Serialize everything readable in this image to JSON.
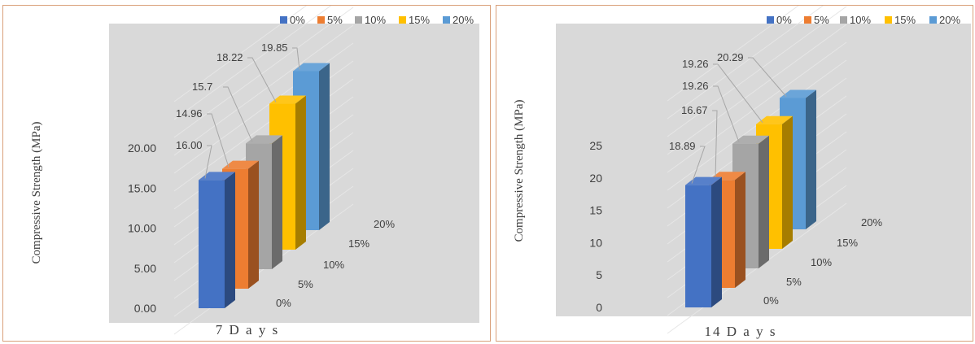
{
  "colors": {
    "plot_bg": "#d9d9d9",
    "series": [
      "#4472c4",
      "#ed7d31",
      "#a5a5a5",
      "#ffc000",
      "#5b9bd5"
    ]
  },
  "chart_data": [
    {
      "type": "bar",
      "subtype": "3d-column",
      "title": "",
      "xlabel": "7 D a y s",
      "ylabel": "Compressive Strength (MPa)",
      "ylim": [
        0,
        20
      ],
      "yticks": [
        "0.00",
        "5.00",
        "10.00",
        "15.00",
        "20.00"
      ],
      "legend_position": "top-right",
      "series": [
        {
          "name": "0%",
          "values": [
            16.0
          ],
          "label": "16.00"
        },
        {
          "name": "5%",
          "values": [
            14.96
          ],
          "label": "14.96"
        },
        {
          "name": "10%",
          "values": [
            15.7
          ],
          "label": "15.7"
        },
        {
          "name": "15%",
          "values": [
            18.22
          ],
          "label": "18.22"
        },
        {
          "name": "20%",
          "values": [
            19.85
          ],
          "label": "19.85"
        }
      ],
      "depth_labels": [
        "0%",
        "5%",
        "10%",
        "15%",
        "20%"
      ]
    },
    {
      "type": "bar",
      "subtype": "3d-column",
      "title": "",
      "xlabel": "14 D a y s",
      "ylabel": "Compressive Strength (MPa)",
      "ylim": [
        0,
        25
      ],
      "yticks": [
        "0",
        "5",
        "10",
        "15",
        "20",
        "25"
      ],
      "legend_position": "top-right",
      "series": [
        {
          "name": "0%",
          "values": [
            18.89
          ],
          "label": "18.89"
        },
        {
          "name": "5%",
          "values": [
            16.67
          ],
          "label": "16.67"
        },
        {
          "name": "10%",
          "values": [
            19.26
          ],
          "label": "19.26"
        },
        {
          "name": "15%",
          "values": [
            19.26
          ],
          "label": "19.26"
        },
        {
          "name": "20%",
          "values": [
            20.29
          ],
          "label": "20.29"
        }
      ],
      "depth_labels": [
        "0%",
        "5%",
        "10%",
        "15%",
        "20%"
      ]
    }
  ]
}
